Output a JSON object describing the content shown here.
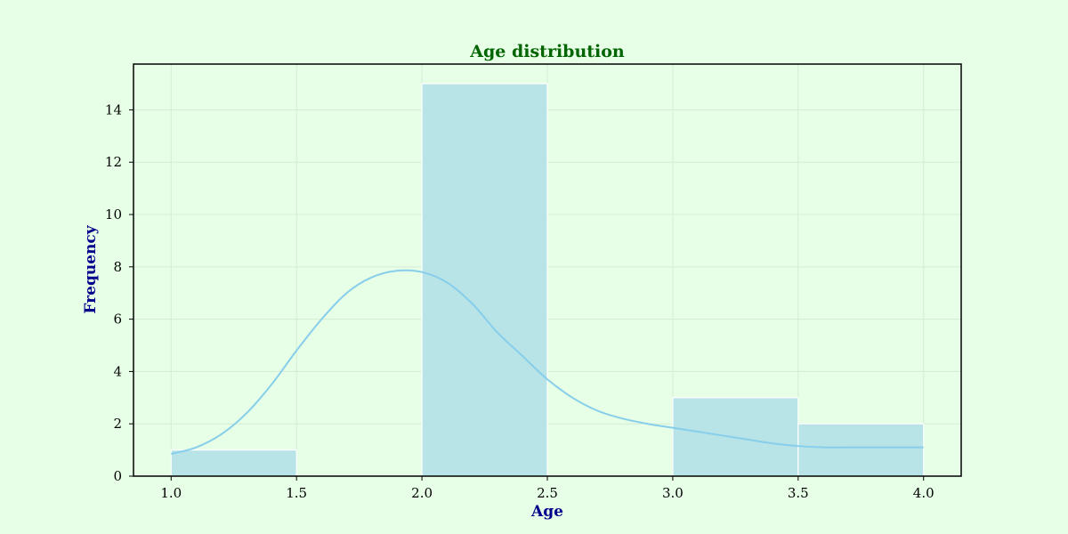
{
  "chart_data": {
    "type": "bar",
    "title": "Age distribution",
    "xlabel": "Age",
    "ylabel": "Frequency",
    "xlim": [
      0.85,
      4.15
    ],
    "ylim": [
      0,
      15.75
    ],
    "x_ticks": [
      "1.0",
      "1.5",
      "2.0",
      "2.5",
      "3.0",
      "3.5",
      "4.0"
    ],
    "y_ticks": [
      "0",
      "2",
      "4",
      "6",
      "8",
      "10",
      "12",
      "14"
    ],
    "bins": [
      {
        "start": 1.0,
        "end": 1.5,
        "value": 1
      },
      {
        "start": 1.5,
        "end": 2.0,
        "value": 0
      },
      {
        "start": 2.0,
        "end": 2.5,
        "value": 15
      },
      {
        "start": 2.5,
        "end": 3.0,
        "value": 0
      },
      {
        "start": 3.0,
        "end": 3.5,
        "value": 3
      },
      {
        "start": 3.5,
        "end": 4.0,
        "value": 2
      }
    ],
    "kde": {
      "x": [
        1.0,
        1.1,
        1.2,
        1.3,
        1.4,
        1.5,
        1.6,
        1.7,
        1.8,
        1.9,
        2.0,
        2.1,
        2.2,
        2.3,
        2.4,
        2.5,
        2.6,
        2.7,
        2.8,
        2.9,
        3.0,
        3.1,
        3.2,
        3.3,
        3.4,
        3.5,
        3.6,
        3.7,
        3.8,
        3.9,
        4.0
      ],
      "y": [
        0.85,
        1.1,
        1.6,
        2.4,
        3.5,
        4.8,
        6.0,
        7.0,
        7.6,
        7.85,
        7.8,
        7.4,
        6.6,
        5.5,
        4.6,
        3.7,
        3.0,
        2.5,
        2.2,
        2.0,
        1.85,
        1.7,
        1.55,
        1.4,
        1.25,
        1.15,
        1.1,
        1.1,
        1.1,
        1.1,
        1.1
      ]
    },
    "grid": true,
    "colors": {
      "background": "#e6ffe6",
      "bar_fill": "#b8e4e8",
      "bar_edge": "#ffffff",
      "kde_line": "#87ceeb",
      "title": "#006400",
      "axis_label": "#00008b",
      "grid": "#d4ecd4",
      "frame": "#000000"
    }
  }
}
